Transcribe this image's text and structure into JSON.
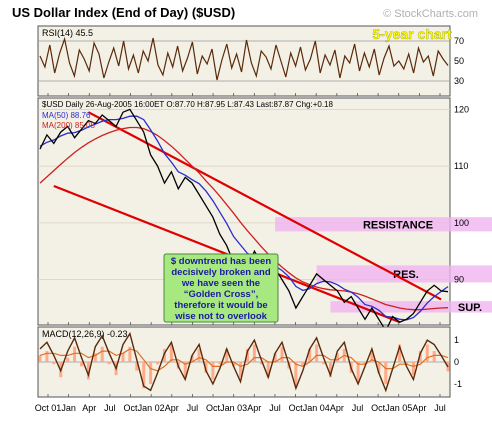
{
  "header": {
    "title": "US Dollar Index (End of Day) ($USD)",
    "watermark": "© StockCharts.com",
    "period_label": "5-year chart"
  },
  "colors": {
    "background": "#ffffff",
    "panel_bg": "#f3f0e6",
    "price_line": "#000000",
    "ma50": "#2c2ccf",
    "ma200": "#cc2222",
    "channel": "#e00000",
    "zone": "#f0b4f0",
    "osc_line": "#5a2a0a",
    "annotation_bg": "#a8e880",
    "annotation_text": "#1a1aa0",
    "watermark": "#b0b0b0",
    "period_label": "#ffff00",
    "macd_signal": "#e07020",
    "macd_hist": "#ffaa88"
  },
  "chart_data": [
    {
      "type": "line",
      "panel": "rsi",
      "title": "RSI(14) 45.5",
      "yticks": [
        30,
        50,
        70
      ],
      "ylim": [
        15,
        85
      ],
      "reference_lines": [
        30,
        70
      ],
      "series": [
        {
          "name": "RSI(14)",
          "values": [
            55,
            44,
            66,
            38,
            58,
            72,
            48,
            35,
            61,
            52,
            40,
            68,
            57,
            33,
            49,
            63,
            45,
            70,
            42,
            56,
            38,
            60,
            50,
            73,
            46,
            36,
            58,
            44,
            65,
            40,
            53,
            69,
            37,
            55,
            47,
            62,
            31,
            51,
            67,
            43,
            57,
            39,
            71,
            48,
            35,
            60,
            54,
            42,
            66,
            50,
            34,
            58,
            45,
            64,
            41,
            52,
            70,
            38,
            56,
            46,
            61,
            33,
            55,
            48,
            67,
            40,
            58,
            44,
            62,
            36,
            53,
            65,
            45,
            50,
            42,
            57,
            38,
            63,
            49,
            55,
            35,
            60,
            52,
            45.5
          ],
          "last": 45.5
        }
      ]
    },
    {
      "type": "line",
      "panel": "price",
      "title": "$USD Daily 26-Aug-2005 16:00ET O:87.70 H:87.95 L:87.43 Last:87.87 Chg:+0.18",
      "quote": {
        "open": 87.7,
        "high": 87.95,
        "low": 87.43,
        "last": 87.87,
        "change": 0.18
      },
      "ylabel": "",
      "ylim": [
        82,
        122
      ],
      "yticks": [
        90,
        100,
        110,
        120
      ],
      "x_tick_labels": [
        "Oct 01",
        "Jan",
        "Apr",
        "Jul",
        "Oct",
        "Jan 02",
        "Apr",
        "Jul",
        "Oct",
        "Jan 03",
        "Apr",
        "Jul",
        "Oct",
        "Jan 04",
        "Apr",
        "Jul",
        "Oct",
        "Jan 05",
        "Apr",
        "Jul"
      ],
      "series": [
        {
          "name": "$USD",
          "values": [
            113,
            115.5,
            114,
            116,
            117,
            115,
            116.5,
            118,
            117.5,
            119,
            118,
            117,
            119.5,
            120,
            118,
            116,
            112,
            110,
            107,
            109,
            106,
            108,
            107,
            105,
            103,
            101,
            98,
            96,
            93,
            94,
            92,
            95,
            93,
            91,
            92,
            90,
            88,
            85,
            87,
            89,
            91,
            90,
            89,
            88,
            86,
            87,
            85,
            83,
            85,
            83,
            81,
            83.5,
            82.5,
            83,
            84,
            86,
            88,
            89,
            88,
            87.87
          ]
        },
        {
          "name": "MA(50) 88.76",
          "values": [
            113.5,
            114.2,
            114.6,
            115.3,
            115.8,
            115.9,
            116.3,
            116.9,
            117.4,
            117.9,
            118.2,
            118.2,
            118.4,
            118.8,
            118.8,
            118.2,
            116.4,
            114.4,
            112.2,
            110.7,
            109,
            108.4,
            107.6,
            106.9,
            105.6,
            103.9,
            101.9,
            99.9,
            97.6,
            96.1,
            94.6,
            94.2,
            93.4,
            92.7,
            92.4,
            91.6,
            90.5,
            88.8,
            88.1,
            88.4,
            89.3,
            89.7,
            89.6,
            89.1,
            88.3,
            87.8,
            86.9,
            85.6,
            85.3,
            84.6,
            83.5,
            83.4,
            83,
            82.9,
            83.3,
            84.4,
            85.9,
            87,
            87.9,
            88.76
          ]
        },
        {
          "name": "MA(200) 85.05",
          "values": [
            107,
            108.1,
            109.2,
            110.3,
            111.4,
            112.4,
            113.3,
            114.1,
            114.8,
            115.4,
            115.9,
            116.3,
            116.6,
            116.8,
            116.8,
            116.6,
            116.1,
            115.4,
            114.5,
            113.5,
            112.4,
            111.2,
            110,
            108.8,
            107.4,
            106.1,
            104.7,
            103.2,
            101.7,
            100.1,
            98.6,
            97.2,
            95.8,
            94.5,
            93.3,
            92.2,
            91.2,
            90.3,
            89.6,
            89.1,
            88.7,
            88.4,
            88.2,
            88.1,
            88,
            87.8,
            87.5,
            87.1,
            86.6,
            86.1,
            85.6,
            85.3,
            85,
            84.8,
            84.7,
            84.7,
            84.8,
            84.9,
            85,
            85.05
          ]
        }
      ],
      "annotations": [
        {
          "kind": "zone",
          "label": "RESISTANCE",
          "range": [
            98.5,
            101
          ]
        },
        {
          "kind": "zone",
          "label": "RES.",
          "range": [
            89.5,
            92.5
          ]
        },
        {
          "kind": "zone",
          "label": "SUP.",
          "range": [
            84.2,
            86.2
          ]
        },
        {
          "kind": "text",
          "text": "$ downtrend has been decisively broken and we have seen the “Golden Cross”, therefore it would be wise not to overlook the upside potential here"
        }
      ],
      "trend_channel": {
        "upper": [
          [
            7,
            119.5
          ],
          [
            58,
            86.5
          ]
        ],
        "lower": [
          [
            2,
            106.5
          ],
          [
            52,
            82.5
          ]
        ]
      }
    },
    {
      "type": "line",
      "panel": "macd",
      "title": "MACD(12,26,9) -0.23",
      "ylim": [
        -1.6,
        1.6
      ],
      "yticks": [
        -1,
        0,
        1
      ],
      "series": [
        {
          "name": "MACD",
          "values": [
            0.6,
            0.9,
            0.3,
            -0.4,
            0.5,
            1.1,
            0.2,
            -0.6,
            0.7,
            1.2,
            0.4,
            -0.3,
            0.8,
            1.3,
            0.1,
            -1.1,
            -1.3,
            -0.5,
            0.4,
            0.9,
            -0.2,
            -0.8,
            0.3,
            0.8,
            -0.4,
            -1,
            -0.3,
            0.6,
            -0.2,
            -0.9,
            0.5,
            1,
            0.1,
            -0.7,
            0.4,
            0.9,
            -0.1,
            -1.2,
            -0.4,
            0.6,
            1.1,
            0.2,
            -0.6,
            0.5,
            0.9,
            -0.3,
            -1,
            -0.2,
            0.6,
            -0.5,
            -1.3,
            -0.3,
            0.7,
            -0.2,
            -0.8,
            0.4,
            1,
            0.8,
            0.3,
            -0.23
          ]
        },
        {
          "name": "Signal",
          "values": [
            0.3,
            0.4,
            0.4,
            0.3,
            0.3,
            0.4,
            0.4,
            0.2,
            0.3,
            0.5,
            0.5,
            0.3,
            0.4,
            0.6,
            0.5,
            0.1,
            -0.3,
            -0.4,
            -0.2,
            0.1,
            0.1,
            -0.1,
            0,
            0.2,
            0.1,
            -0.2,
            -0.2,
            0,
            0,
            -0.2,
            -0.1,
            0.2,
            0.2,
            0,
            0,
            0.2,
            0.2,
            -0.1,
            -0.2,
            0,
            0.3,
            0.3,
            0.1,
            0.1,
            0.3,
            0.2,
            -0.1,
            -0.1,
            0.1,
            0,
            -0.3,
            -0.3,
            -0.1,
            -0.1,
            -0.2,
            -0.1,
            0.2,
            0.3,
            0.3,
            0.2
          ]
        }
      ]
    }
  ]
}
